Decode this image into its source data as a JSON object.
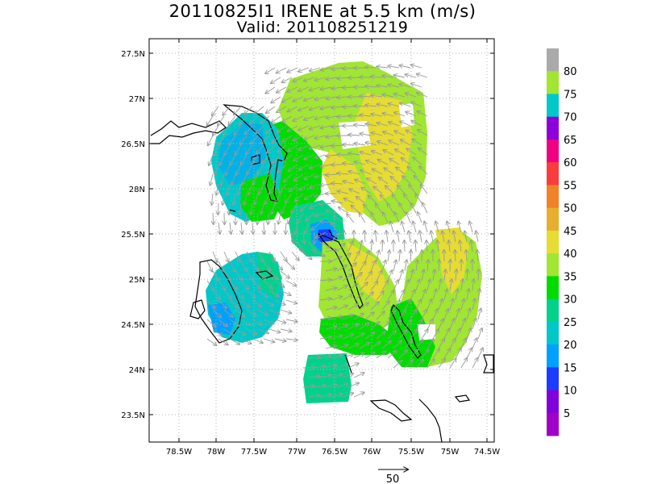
{
  "title": "20110825I1 IRENE at 5.5 km (m/s)",
  "subtitle": "Valid: 201108251219",
  "map": {
    "lat_labels": [
      "27.5N",
      "27N",
      "26.5N",
      "28N",
      "25.5N",
      "25N",
      "24.5N",
      "24N",
      "23.5N"
    ],
    "lon_labels": [
      "78.5W",
      "78W",
      "77.5W",
      "77W",
      "76.5W",
      "76W",
      "75.5W",
      "75W",
      "74.5W"
    ],
    "grid": "dotted",
    "storm_center_label": ""
  },
  "colorbar": {
    "levels": [
      "5",
      "10",
      "15",
      "20",
      "25",
      "30",
      "35",
      "40",
      "45",
      "50",
      "55",
      "60",
      "65",
      "70",
      "75",
      "80"
    ],
    "colors": [
      "#a000c8",
      "#8200dc",
      "#1e3cff",
      "#00a0ff",
      "#00c8c8",
      "#00d28c",
      "#00dc00",
      "#a0e632",
      "#e6dc32",
      "#e6af2d",
      "#f08228",
      "#fa3c3c",
      "#f00082",
      "#8c00dc",
      "#00c8c8",
      "#a0e632",
      "#aaaaaa"
    ]
  },
  "reference_vector": {
    "value": "50"
  }
}
